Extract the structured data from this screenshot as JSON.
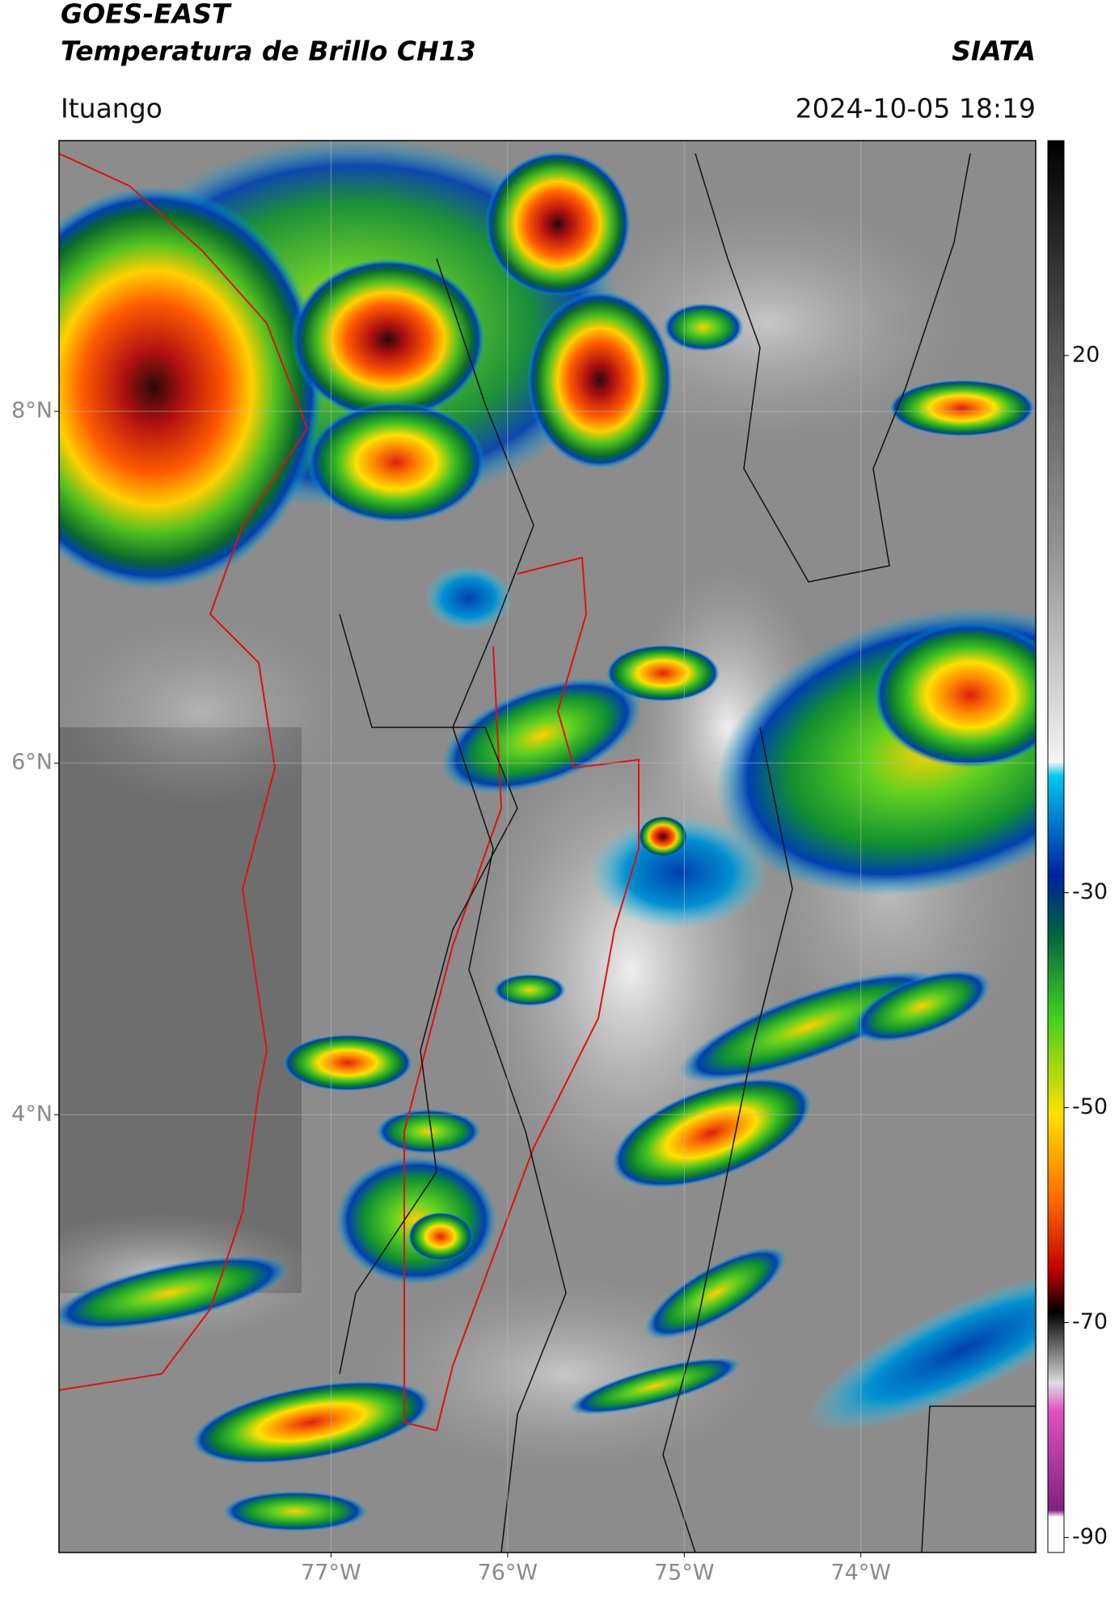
{
  "header": {
    "title": "GOES-EAST",
    "subtitle": "Temperatura de Brillo CH13",
    "source": "SIATA",
    "location": "Ituango",
    "datetime": "2024-10-05 18:19"
  },
  "map": {
    "xlim": [
      -78.54,
      -73.01
    ],
    "ylim": [
      1.51,
      9.54
    ],
    "xticks": [
      {
        "value": -77,
        "label": "77°W"
      },
      {
        "value": -76,
        "label": "76°W"
      },
      {
        "value": -75,
        "label": "75°W"
      },
      {
        "value": -74,
        "label": "74°W"
      }
    ],
    "yticks": [
      {
        "value": 8,
        "label": "8°N"
      },
      {
        "value": 6,
        "label": "6°N"
      },
      {
        "value": 4,
        "label": "4°N"
      }
    ],
    "grid": true
  },
  "colorbar": {
    "lim": [
      -91.4,
      40
    ],
    "ticks": [
      20,
      -30,
      -50,
      -70,
      -90
    ]
  }
}
